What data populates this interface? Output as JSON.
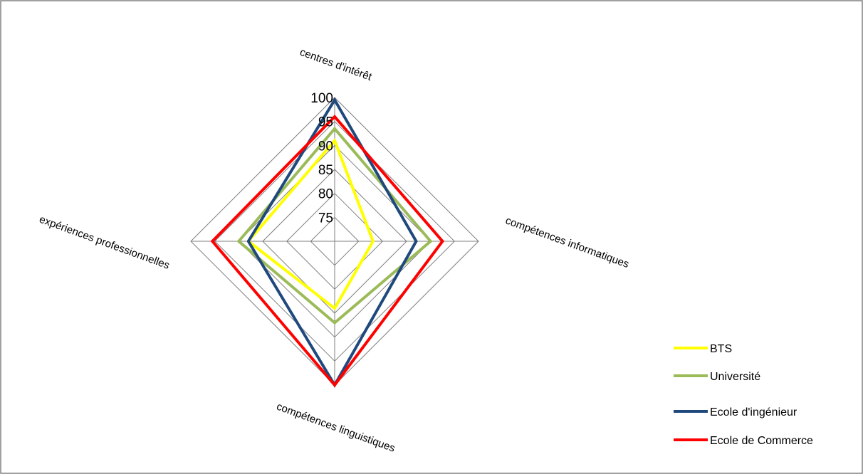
{
  "chart_data": {
    "type": "radar",
    "title": "",
    "axes": [
      "centres d'intérêt",
      "compétences informatiques",
      "compétences linguistiques",
      "expériences professionnelles"
    ],
    "rlim": [
      70,
      100
    ],
    "ticks": [
      "75",
      "80",
      "85",
      "90",
      "95",
      "100"
    ],
    "tick_values": [
      75,
      80,
      85,
      90,
      95,
      100
    ],
    "grid": true,
    "legend_position": "right-bottom",
    "series": [
      {
        "name": "BTS",
        "color": "#FFFF00",
        "values": [
          91,
          78,
          84,
          88
        ]
      },
      {
        "name": "Université",
        "color": "#9BBB59",
        "values": [
          93.5,
          90,
          87,
          90
        ]
      },
      {
        "name": "Ecole d'ingénieur",
        "color": "#1F497D",
        "values": [
          99.5,
          87,
          100,
          88
        ]
      },
      {
        "name": "Ecole de Commerce",
        "color": "#FF0000",
        "values": [
          96,
          92.5,
          100,
          95.5
        ]
      }
    ]
  }
}
